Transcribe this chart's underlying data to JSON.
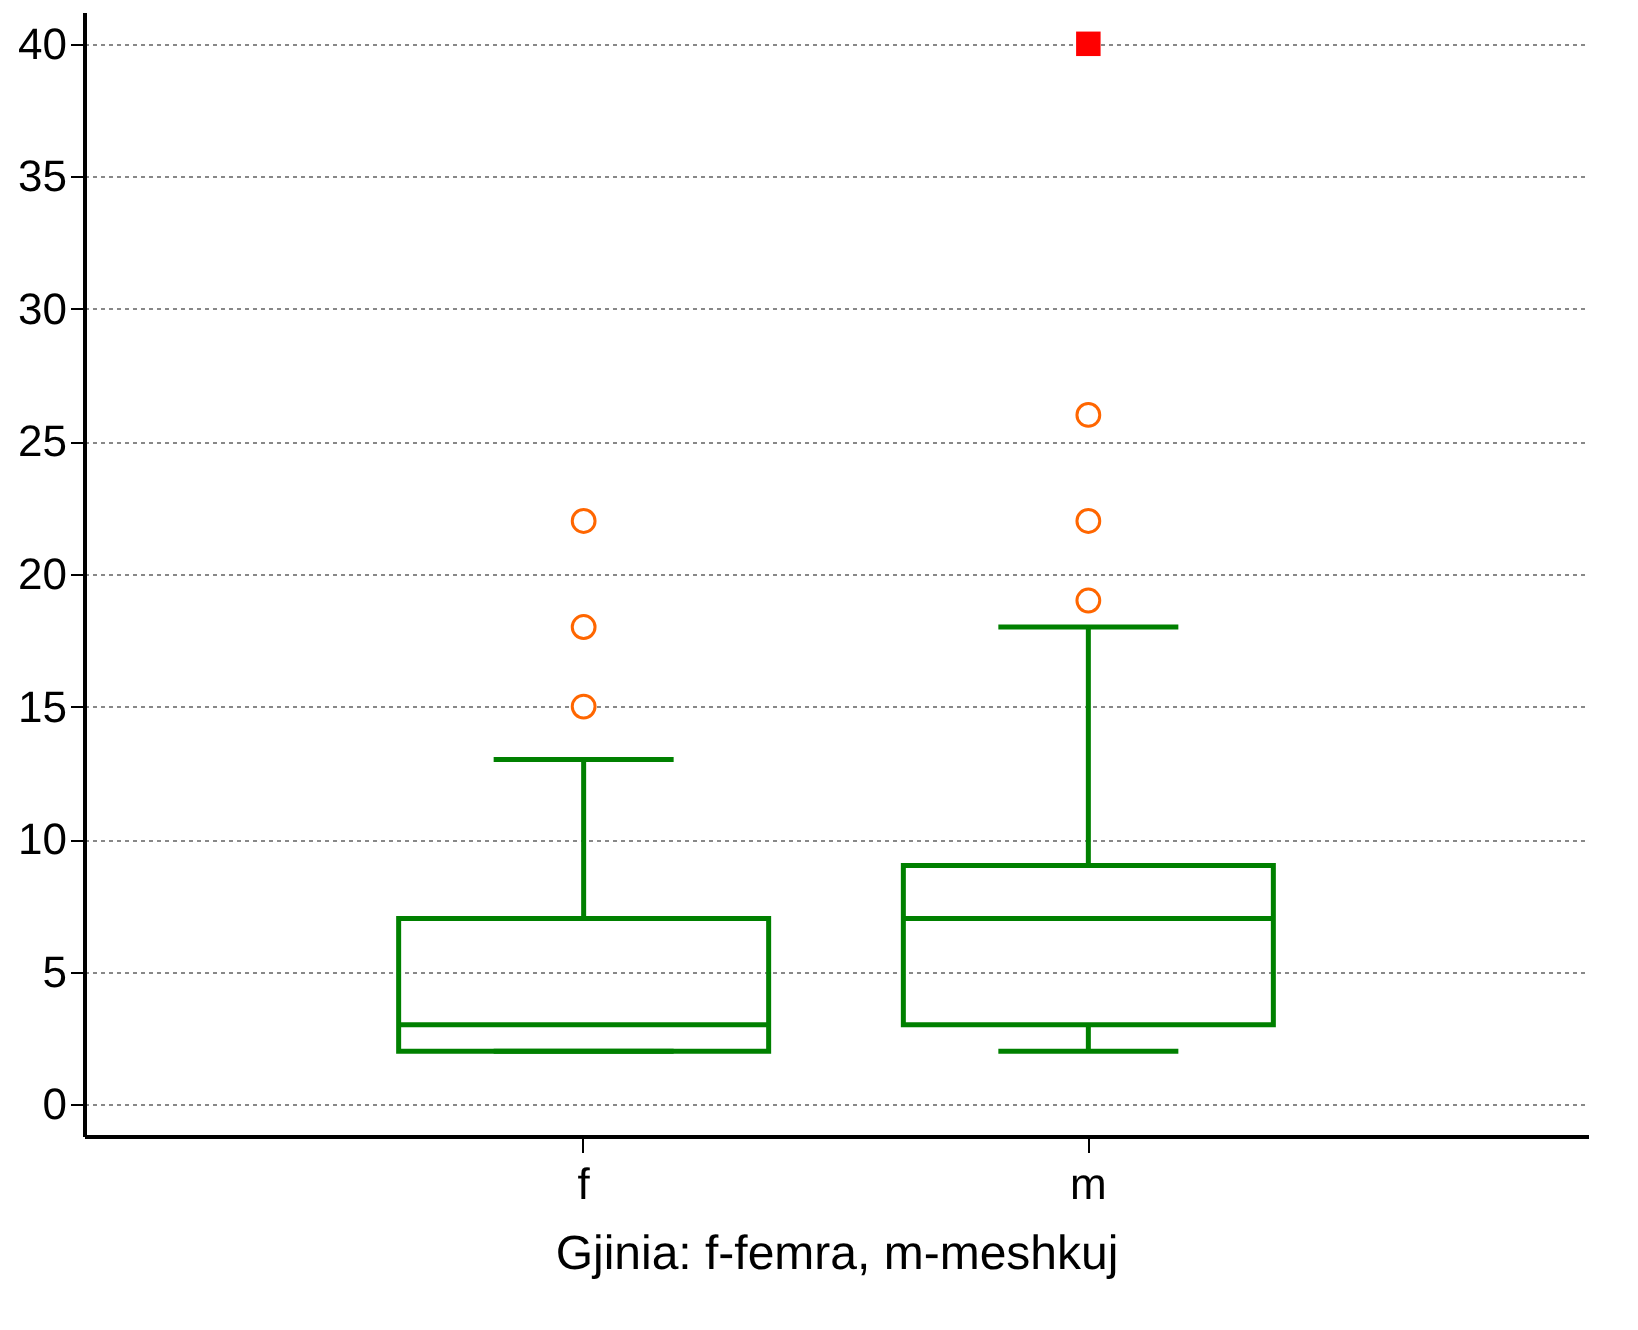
{
  "chart_data": {
    "type": "box",
    "xlabel": "Gjinia: f-femra, m-meshkuj",
    "categories": [
      "f",
      "m"
    ],
    "boxes": [
      {
        "low": 2,
        "q1": 2,
        "median": 3,
        "q3": 7,
        "high": 13,
        "outliers": [
          15,
          18,
          22
        ]
      },
      {
        "low": 2,
        "q1": 3,
        "median": 7,
        "q3": 9,
        "high": 18,
        "outliers": [
          19,
          22,
          26
        ]
      }
    ],
    "color": "#008000",
    "series": [
      {
        "type": "scatter",
        "x": [
          "m"
        ],
        "values": [
          40
        ],
        "color": "#ff0000",
        "marker": "square"
      }
    ],
    "ylim": [
      -1.2,
      41.2
    ],
    "yticks": [
      0,
      5,
      10,
      15,
      20,
      25,
      30,
      35,
      40
    ],
    "grid": "y"
  }
}
